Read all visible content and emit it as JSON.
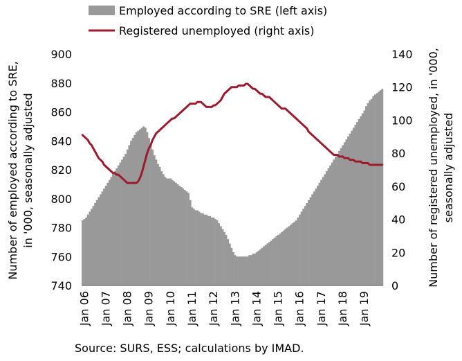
{
  "chart_data": {
    "type": "bar",
    "source_note": "Source: SURS, ESS; calculations by IMAD.",
    "legend": {
      "position": "top",
      "entries": [
        {
          "label": "Employed according to SRE (left axis)",
          "color": "#999999",
          "kind": "bar"
        },
        {
          "label": "Registered unemployed (right axis)",
          "color": "#9b1a2e",
          "kind": "line"
        }
      ]
    },
    "y_left": {
      "label_line1": "Number of employed according to SRE,",
      "label_line2": "in '000, seasonally adjusted",
      "ylim": [
        740,
        900
      ],
      "ticks": [
        "740",
        "760",
        "780",
        "800",
        "820",
        "840",
        "860",
        "880",
        "900"
      ]
    },
    "y_right": {
      "label_line1": "Number of registered unemployed, in '000,",
      "label_line2": "seasonally adjusted",
      "ylim": [
        0,
        140
      ],
      "ticks": [
        "0",
        "20",
        "40",
        "60",
        "80",
        "100",
        "120",
        "140"
      ]
    },
    "x": {
      "ticks": [
        "Jan 06",
        "Jan 07",
        "Jan 08",
        "Jan 09",
        "Jan 10",
        "Jan 11",
        "Jan 12",
        "Jan 13",
        "Jan 14",
        "Jan 15",
        "Jan 16",
        "Jan 17",
        "Jan 18",
        "Jan 19"
      ]
    },
    "series": [
      {
        "name": "Employed according to SRE (left axis)",
        "axis": "left",
        "start": "2006-01",
        "frequency": "monthly",
        "values": [
          785,
          786,
          787,
          789,
          791,
          793,
          795,
          797,
          799,
          801,
          803,
          805,
          807,
          809,
          811,
          813,
          815,
          817,
          819,
          821,
          823,
          825,
          827,
          829,
          831,
          834,
          837,
          840,
          842,
          844,
          846,
          847,
          848,
          849,
          850,
          849,
          846,
          842,
          838,
          834,
          830,
          827,
          824,
          822,
          819,
          817,
          815,
          814,
          814,
          814,
          813,
          812,
          811,
          810,
          809,
          808,
          807,
          806,
          805,
          804,
          799,
          794,
          793,
          792,
          792,
          791,
          790,
          790,
          789,
          789,
          788,
          788,
          787,
          787,
          786,
          785,
          783,
          781,
          779,
          777,
          775,
          772,
          769,
          766,
          763,
          761,
          760,
          760,
          760,
          760,
          760,
          760,
          760,
          761,
          761,
          762,
          762,
          763,
          764,
          765,
          766,
          767,
          768,
          769,
          770,
          771,
          772,
          773,
          774,
          775,
          776,
          777,
          778,
          779,
          780,
          781,
          782,
          783,
          784,
          785,
          787,
          789,
          791,
          793,
          795,
          797,
          799,
          801,
          803,
          805,
          807,
          809,
          811,
          813,
          815,
          817,
          819,
          821,
          823,
          825,
          827,
          829,
          831,
          833,
          835,
          837,
          839,
          841,
          843,
          845,
          847,
          849,
          851,
          853,
          855,
          857,
          859,
          861,
          864,
          866,
          868,
          869,
          871,
          872,
          873,
          874,
          875,
          876
        ]
      },
      {
        "name": "Registered unemployed (right axis)",
        "axis": "right",
        "start": "2006-01",
        "frequency": "monthly",
        "values": [
          91,
          90,
          89,
          88,
          86,
          85,
          83,
          81,
          79,
          77,
          76,
          75,
          73,
          72,
          71,
          70,
          69,
          68,
          68,
          67,
          67,
          66,
          65,
          64,
          63,
          62,
          62,
          62,
          62,
          62,
          62,
          63,
          65,
          68,
          72,
          76,
          80,
          83,
          85,
          88,
          90,
          92,
          93,
          94,
          95,
          96,
          97,
          98,
          99,
          100,
          101,
          101,
          102,
          103,
          104,
          105,
          106,
          107,
          108,
          109,
          110,
          110,
          110,
          110,
          111,
          111,
          111,
          110,
          109,
          108,
          108,
          108,
          108,
          109,
          109,
          110,
          111,
          112,
          114,
          116,
          117,
          118,
          119,
          120,
          120,
          120,
          120,
          121,
          121,
          121,
          121,
          122,
          122,
          121,
          120,
          119,
          119,
          118,
          117,
          116,
          116,
          115,
          114,
          114,
          114,
          113,
          112,
          111,
          110,
          109,
          108,
          107,
          107,
          107,
          106,
          105,
          104,
          103,
          102,
          101,
          100,
          99,
          98,
          97,
          96,
          95,
          93,
          92,
          91,
          90,
          89,
          88,
          87,
          86,
          85,
          84,
          83,
          82,
          81,
          80,
          79,
          79,
          79,
          78,
          78,
          78,
          77,
          77,
          77,
          76,
          76,
          76,
          75,
          75,
          75,
          75,
          74,
          74,
          74,
          74,
          73,
          73,
          73,
          73,
          73,
          73,
          73,
          73
        ]
      }
    ]
  }
}
